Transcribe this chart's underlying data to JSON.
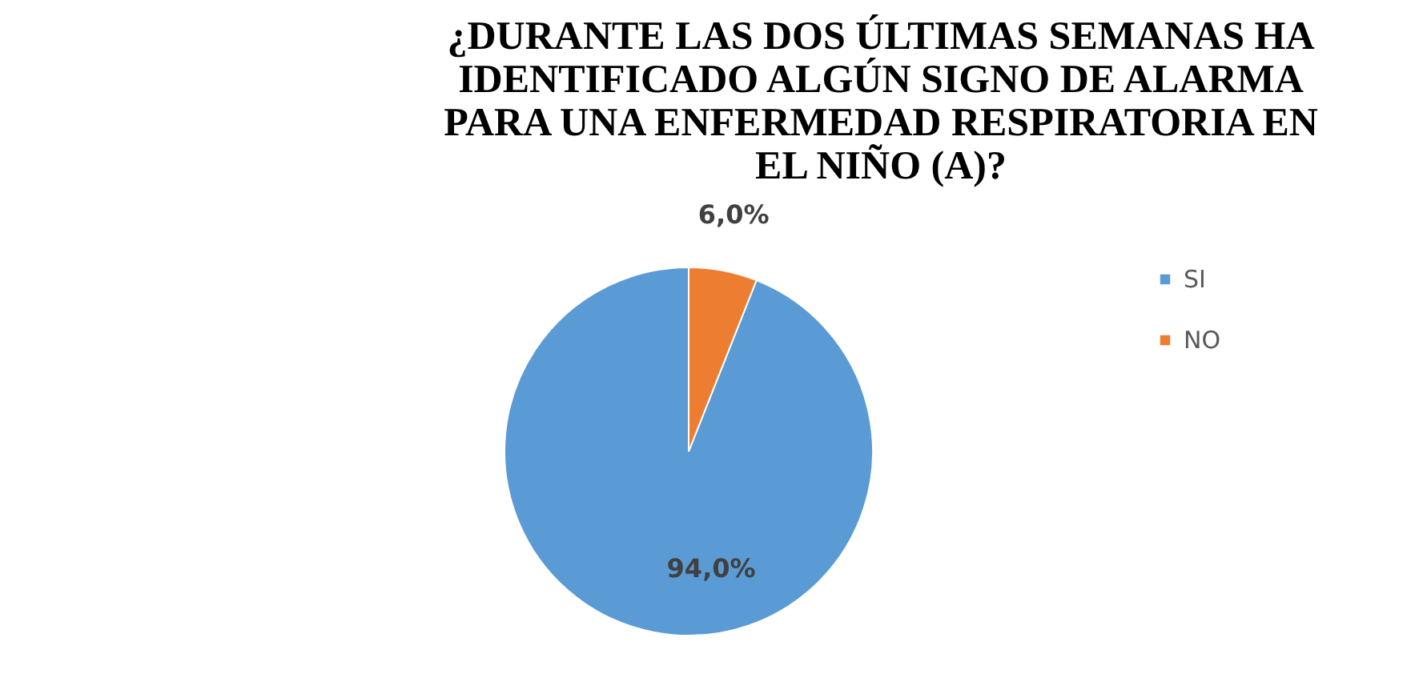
{
  "chart_data": {
    "type": "pie",
    "title": "¿DURANTE LAS DOS ÚLTIMAS SEMANAS HA IDENTIFICADO ALGÚN SIGNO DE ALARMA PARA UNA ENFERMEDAD RESPIRATORIA EN EL NIÑO (A)?",
    "categories": [
      "SI",
      "NO"
    ],
    "values": [
      94,
      6
    ],
    "colors": [
      "#5b9bd5",
      "#ed7d31"
    ],
    "value_labels": [
      "94,0%",
      "6,0%"
    ],
    "legend": "right"
  }
}
